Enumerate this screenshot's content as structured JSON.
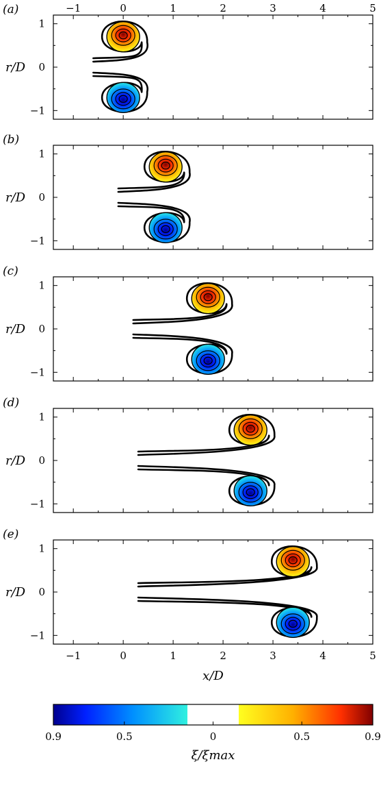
{
  "chart_data": {
    "type": "contour",
    "x_tick_labels": [
      "−1",
      "0",
      "1",
      "2",
      "3",
      "4",
      "5"
    ],
    "x_ticks": [
      -1,
      0,
      1,
      2,
      3,
      4,
      5
    ],
    "y_tick_labels": [
      "−1",
      "0",
      "1"
    ],
    "y_ticks": [
      -1,
      0,
      1
    ],
    "xlim": [
      -1.4,
      5.0
    ],
    "ylim": [
      -1.2,
      1.2
    ],
    "xlabel": "x/D",
    "ylabel": "r/D",
    "panels": [
      {
        "label": "(a)",
        "vortex_x": 0.0,
        "core_y": 0.7,
        "tail_start_x": -0.6
      },
      {
        "label": "(b)",
        "vortex_x": 0.85,
        "core_y": 0.7,
        "tail_start_x": -0.1
      },
      {
        "label": "(c)",
        "vortex_x": 1.7,
        "core_y": 0.7,
        "tail_start_x": 0.2
      },
      {
        "label": "(d)",
        "vortex_x": 2.55,
        "core_y": 0.7,
        "tail_start_x": 0.3
      },
      {
        "label": "(e)",
        "vortex_x": 3.4,
        "core_y": 0.7,
        "tail_start_x": 0.3
      }
    ],
    "colorbar": {
      "label": "ξ/ξmax",
      "tick_labels": [
        "0.9",
        "0.5",
        "0",
        "0.5",
        "0.9"
      ],
      "ticks": [
        -0.9,
        -0.5,
        0,
        0.5,
        0.9
      ],
      "range": [
        -0.9,
        0.9
      ],
      "blank_band": [
        -0.15,
        0.15
      ],
      "colors": {
        "negative": [
          "#00008f",
          "#0020ff",
          "#0090ff",
          "#30f0e0"
        ],
        "positive": [
          "#ffff20",
          "#ffb000",
          "#ff3000",
          "#800000"
        ]
      }
    }
  }
}
